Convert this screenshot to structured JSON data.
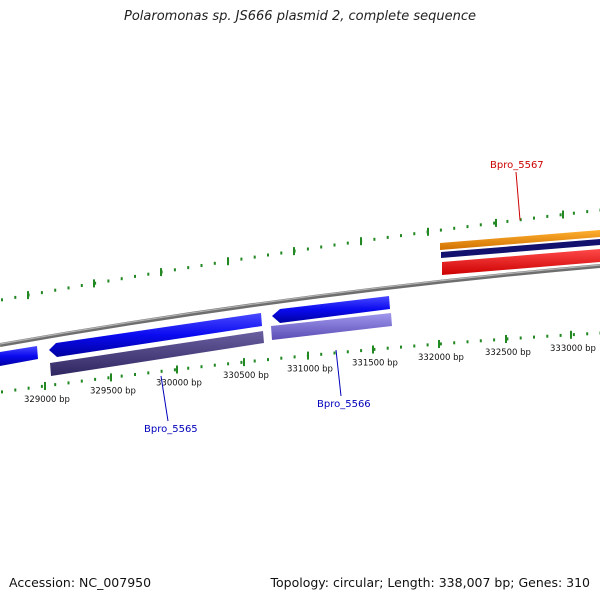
{
  "title": "Polaromonas sp. JS666 plasmid 2, complete sequence",
  "footer": {
    "accession": "Accession: NC_007950",
    "topology": "Topology: circular; Length: 338,007 bp; Genes: 310"
  },
  "ticks": [
    {
      "bp": 329000,
      "label": "329000 bp"
    },
    {
      "bp": 329500,
      "label": "329500 bp"
    },
    {
      "bp": 330000,
      "label": "330000 bp"
    },
    {
      "bp": 330500,
      "label": "330500 bp"
    },
    {
      "bp": 331000,
      "label": "331000 bp"
    },
    {
      "bp": 331500,
      "label": "331500 bp"
    },
    {
      "bp": 332000,
      "label": "332000 bp"
    },
    {
      "bp": 332500,
      "label": "332500 bp"
    },
    {
      "bp": 333000,
      "label": "333000 bp"
    }
  ],
  "genes": [
    {
      "name": "Bpro_5565",
      "color": "#0000bb"
    },
    {
      "name": "Bpro_5566",
      "color": "#0000bb"
    },
    {
      "name": "Bpro_5567",
      "color": "#cc0000"
    }
  ],
  "colors": {
    "backbone": "#888888",
    "tick_mark": "#228822",
    "cds_forward": "#0a0af0",
    "cds_dark": "#4a3f7a",
    "cds_light": "#7868cc",
    "gene_orange": "#f08c00",
    "gene_navy": "#12126e",
    "gene_red": "#ee0000"
  }
}
